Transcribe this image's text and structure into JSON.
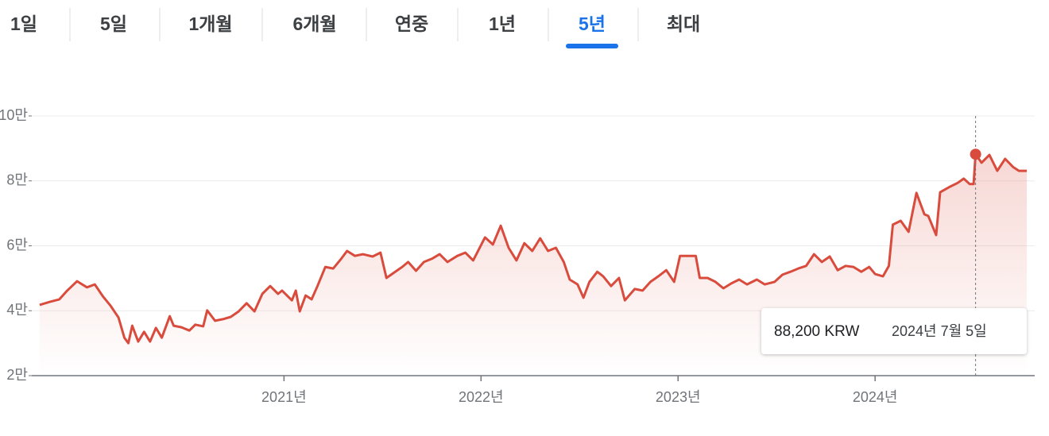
{
  "tabs": [
    {
      "label": "1일",
      "selected": false
    },
    {
      "label": "5일",
      "selected": false
    },
    {
      "label": "1개월",
      "selected": false
    },
    {
      "label": "6개월",
      "selected": false
    },
    {
      "label": "연중",
      "selected": false
    },
    {
      "label": "1년",
      "selected": false
    },
    {
      "label": "5년",
      "selected": true
    },
    {
      "label": "최대",
      "selected": false
    }
  ],
  "chart_data": {
    "type": "line",
    "color": "#d94c3d",
    "grid": true,
    "ylim": [
      20000,
      100000
    ],
    "yticks": [
      {
        "value": 20000,
        "label": "2만"
      },
      {
        "value": 40000,
        "label": "4만"
      },
      {
        "value": 60000,
        "label": "6만"
      },
      {
        "value": 80000,
        "label": "8만"
      },
      {
        "value": 100000,
        "label": "10만"
      }
    ],
    "xlim": [
      2019.72,
      2024.81
    ],
    "xticks": [
      {
        "value": 2021,
        "label": "2021년"
      },
      {
        "value": 2022,
        "label": "2022년"
      },
      {
        "value": 2023,
        "label": "2023년"
      },
      {
        "value": 2024,
        "label": "2024년"
      }
    ],
    "x": [
      2019.76,
      2019.81,
      2019.86,
      2019.9,
      2019.95,
      2020.0,
      2020.04,
      2020.08,
      2020.12,
      2020.16,
      2020.19,
      2020.21,
      2020.23,
      2020.26,
      2020.29,
      2020.32,
      2020.35,
      2020.38,
      2020.42,
      2020.44,
      2020.48,
      2020.52,
      2020.55,
      2020.59,
      2020.61,
      2020.65,
      2020.69,
      2020.73,
      2020.77,
      2020.81,
      2020.85,
      2020.89,
      2020.93,
      2020.97,
      2020.99,
      2021.04,
      2021.06,
      2021.08,
      2021.11,
      2021.14,
      2021.17,
      2021.21,
      2021.25,
      2021.29,
      2021.32,
      2021.36,
      2021.4,
      2021.45,
      2021.49,
      2021.52,
      2021.56,
      2021.6,
      2021.63,
      2021.67,
      2021.71,
      2021.75,
      2021.79,
      2021.83,
      2021.88,
      2021.92,
      2021.96,
      2022.02,
      2022.06,
      2022.1,
      2022.14,
      2022.18,
      2022.22,
      2022.26,
      2022.3,
      2022.34,
      2022.38,
      2022.42,
      2022.45,
      2022.49,
      2022.52,
      2022.55,
      2022.59,
      2022.62,
      2022.66,
      2022.7,
      2022.73,
      2022.78,
      2022.82,
      2022.86,
      2022.9,
      2022.94,
      2022.98,
      2023.01,
      2023.05,
      2023.09,
      2023.11,
      2023.15,
      2023.19,
      2023.23,
      2023.27,
      2023.31,
      2023.35,
      2023.4,
      2023.44,
      2023.49,
      2023.53,
      2023.57,
      2023.61,
      2023.65,
      2023.69,
      2023.73,
      2023.77,
      2023.81,
      2023.85,
      2023.89,
      2023.93,
      2023.97,
      2024.0,
      2024.04,
      2024.07,
      2024.09,
      2024.13,
      2024.17,
      2024.21,
      2024.25,
      2024.27,
      2024.31,
      2024.33,
      2024.38,
      2024.42,
      2024.45,
      2024.48,
      2024.5,
      2024.51,
      2024.54,
      2024.58,
      2024.62,
      2024.66,
      2024.7,
      2024.73,
      2024.77
    ],
    "values": [
      41800,
      42700,
      43500,
      46200,
      49100,
      47200,
      48100,
      44500,
      41500,
      37900,
      31700,
      30000,
      35400,
      30500,
      33500,
      30500,
      34700,
      31700,
      38300,
      35400,
      34900,
      33900,
      35700,
      35200,
      40100,
      36900,
      37400,
      38100,
      39800,
      42300,
      39800,
      45200,
      47600,
      45200,
      46200,
      43200,
      46200,
      39800,
      44700,
      43500,
      47600,
      53500,
      53000,
      56000,
      58400,
      56900,
      57400,
      56700,
      57900,
      50100,
      51800,
      53500,
      55000,
      52300,
      55000,
      56000,
      57400,
      55000,
      56900,
      57900,
      55500,
      62600,
      60400,
      66200,
      59400,
      55500,
      60800,
      58400,
      62300,
      58400,
      59400,
      55000,
      49600,
      48100,
      44000,
      48900,
      52000,
      50600,
      47600,
      50100,
      43200,
      46700,
      46200,
      48900,
      50600,
      52500,
      48900,
      56900,
      56900,
      56900,
      50100,
      50100,
      48900,
      46900,
      48400,
      49600,
      48100,
      49600,
      48100,
      48900,
      51100,
      52000,
      53000,
      53800,
      57400,
      55000,
      56700,
      52500,
      53800,
      53500,
      52000,
      53500,
      51300,
      50600,
      53800,
      66500,
      67700,
      64300,
      76300,
      69700,
      69200,
      63300,
      76500,
      78200,
      79400,
      80700,
      79000,
      79000,
      88200,
      85600,
      88000,
      83100,
      86800,
      84300,
      83100,
      83100
    ],
    "highlight": {
      "x": 2024.51,
      "value": 88200,
      "value_label": "88,200 KRW",
      "date_label": "2024년 7월 5일"
    }
  }
}
